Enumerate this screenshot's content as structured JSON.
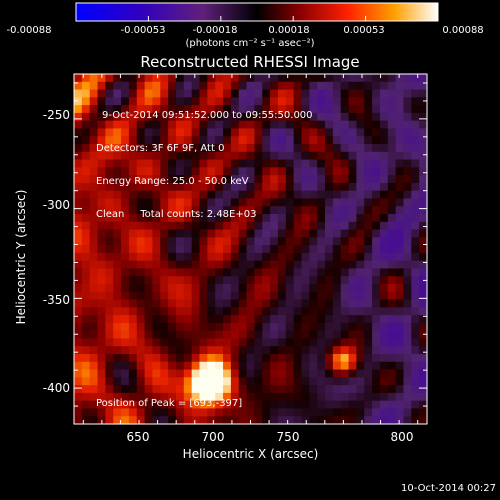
{
  "chart_data": {
    "type": "heatmap",
    "title": "Reconstructed RHESSI Image",
    "xlabel": "Heliocentric X (arcsec)",
    "ylabel": "Heliocentric Y (arcsec)",
    "xlim": [
      620,
      810
    ],
    "ylim": [
      -420,
      -225
    ],
    "x_ticks": [
      "650",
      "700",
      "750",
      "800"
    ],
    "y_ticks": [
      "-250",
      "-300",
      "-350",
      "-400"
    ],
    "colorbar": {
      "ticks": [
        "-0.00088",
        "-0.00053",
        "-0.00018",
        "0.00018",
        "0.00053",
        "0.00088"
      ],
      "range": [
        -0.00088,
        0.00088
      ],
      "units": "(photons cm⁻² s⁻¹ asec⁻²)"
    },
    "info_lines": [
      "9-Oct-2014 09:51:52.000 to 09:55:50.000",
      "Detectors: 3F 6F 9F, Att 0",
      "Energy Range: 25.0 - 50.0 keV",
      "Clean     Total counts: 2.48E+03"
    ],
    "peak_label": "Position of Peak = [693,-397]",
    "peak": [
      693,
      -397
    ]
  },
  "footer": {
    "timestamp": "10-Oct-2014 00:27"
  }
}
